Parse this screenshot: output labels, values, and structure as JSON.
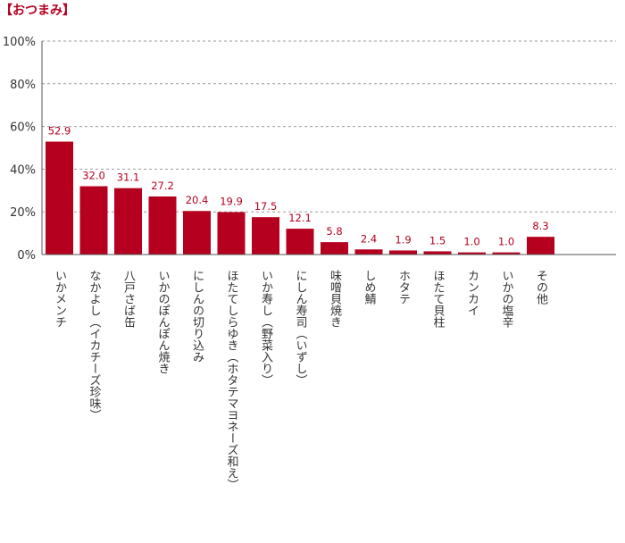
{
  "chart_data": {
    "type": "bar",
    "title": "【おつまみ】",
    "categories": [
      "いかメンチ",
      "なかよし（イカチーズ珍味）",
      "八戸さば缶",
      "いかのぽんぽん焼き",
      "にしんの切り込み",
      "ほたてしらゆき（ホタテマヨネーズ和え）",
      "いか寿し（野菜入り）",
      "にしん寿司（いずし）",
      "味噌貝焼き",
      "しめ鯖",
      "ホタテ",
      "ほたて貝柱",
      "カンカイ",
      "いかの塩辛",
      "その他"
    ],
    "values": [
      52.9,
      32.0,
      31.1,
      27.2,
      20.4,
      19.9,
      17.5,
      12.1,
      5.8,
      2.4,
      1.9,
      1.5,
      1.0,
      1.0,
      8.3
    ],
    "value_labels": [
      "52.9",
      "32.0",
      "31.1",
      "27.2",
      "20.4",
      "19.9",
      "17.5",
      "12.1",
      "5.8",
      "2.4",
      "1.9",
      "1.5",
      "1.0",
      "1.0",
      "8.3"
    ],
    "yticks": [
      "0%",
      "20%",
      "40%",
      "60%",
      "80%",
      "100%"
    ],
    "ylim": [
      0,
      100
    ],
    "grid": true,
    "bar_color": "#b5001f",
    "xlabel": "",
    "ylabel": ""
  }
}
